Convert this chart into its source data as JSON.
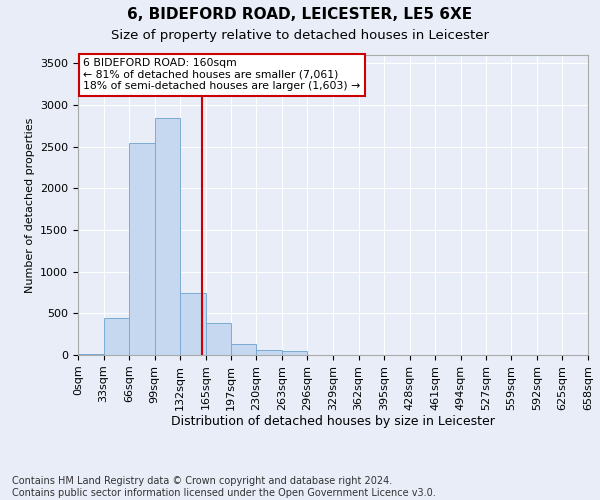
{
  "title": "6, BIDEFORD ROAD, LEICESTER, LE5 6XE",
  "subtitle": "Size of property relative to detached houses in Leicester",
  "xlabel": "Distribution of detached houses by size in Leicester",
  "ylabel": "Number of detached properties",
  "bar_edges": [
    0,
    33,
    66,
    99,
    132,
    165,
    197,
    230,
    263,
    296,
    329,
    362,
    395,
    428,
    461,
    494,
    527,
    559,
    592,
    625,
    658
  ],
  "bar_values": [
    10,
    450,
    2550,
    2850,
    750,
    390,
    130,
    65,
    50,
    0,
    0,
    0,
    0,
    0,
    0,
    0,
    0,
    0,
    0,
    0
  ],
  "bar_color": "#c5d8f0",
  "bar_edge_color": "#7aaad4",
  "vline_x": 160,
  "vline_color": "#cc0000",
  "annotation_box_text": "6 BIDEFORD ROAD: 160sqm\n← 81% of detached houses are smaller (7,061)\n18% of semi-detached houses are larger (1,603) →",
  "annotation_box_color": "#cc0000",
  "ylim": [
    0,
    3600
  ],
  "yticks": [
    0,
    500,
    1000,
    1500,
    2000,
    2500,
    3000,
    3500
  ],
  "tick_label_fontsize": 8,
  "title_fontsize": 11,
  "subtitle_fontsize": 9.5,
  "xlabel_fontsize": 9,
  "ylabel_fontsize": 8,
  "footer_text": "Contains HM Land Registry data © Crown copyright and database right 2024.\nContains public sector information licensed under the Open Government Licence v3.0.",
  "footer_fontsize": 7,
  "bg_color": "#e8edf8",
  "plot_bg_color": "#e8edf8",
  "grid_color": "#ffffff"
}
